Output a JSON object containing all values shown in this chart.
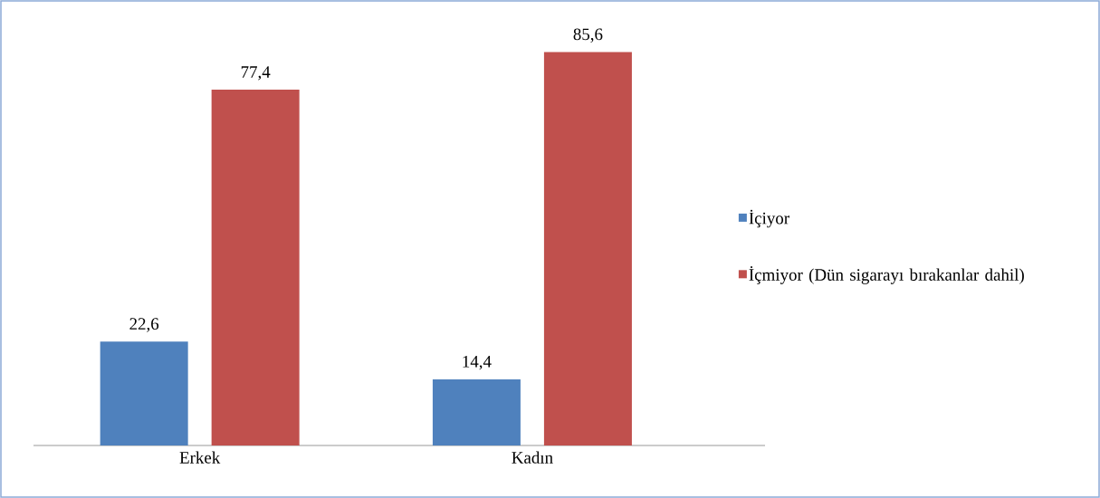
{
  "chart_data": {
    "type": "bar",
    "categories": [
      "Erkek",
      "Kadın"
    ],
    "series": [
      {
        "name": "İçiyor",
        "color": "#4f81bd",
        "values": [
          22.6,
          14.4
        ],
        "value_labels": [
          "22,6",
          "14,4"
        ]
      },
      {
        "name": "İçmiyor (Dün sigarayı bırakanlar dahil)",
        "color": "#c0504d",
        "values": [
          77.4,
          85.6
        ],
        "value_labels": [
          "77,4",
          "85,6"
        ]
      }
    ],
    "legend": "right"
  }
}
